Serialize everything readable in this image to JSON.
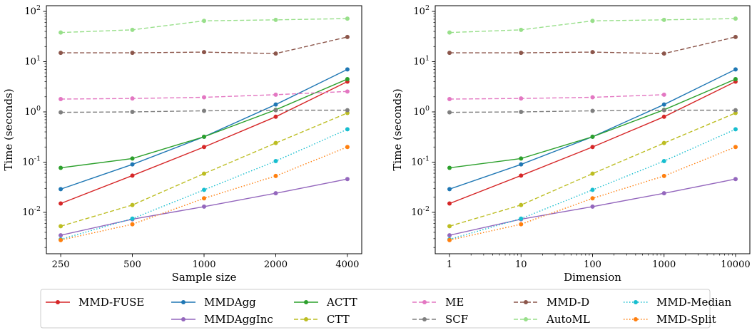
{
  "chart_data": [
    {
      "type": "line",
      "xlabel": "Sample size",
      "ylabel": "Time (seconds)",
      "xscale": "log",
      "yscale": "log",
      "x": [
        250,
        500,
        1000,
        2000,
        4000
      ],
      "xticks": [
        "250",
        "500",
        "1000",
        "2000",
        "4000"
      ],
      "ylim": [
        0.0015,
        130
      ],
      "grid": false,
      "series": [
        {
          "name": "MMD-FUSE",
          "color": "#d62728",
          "dash": "solid",
          "values": [
            0.015,
            0.054,
            0.2,
            0.8,
            4.0
          ]
        },
        {
          "name": "MMDAgg",
          "color": "#1f77b4",
          "dash": "solid",
          "values": [
            0.029,
            0.09,
            0.32,
            1.4,
            7.0
          ]
        },
        {
          "name": "MMDAggInc",
          "color": "#9467bd",
          "dash": "solid",
          "values": [
            0.0035,
            0.0073,
            0.013,
            0.024,
            0.046
          ]
        },
        {
          "name": "ACTT",
          "color": "#2ca02c",
          "dash": "solid",
          "values": [
            0.077,
            0.118,
            0.32,
            1.1,
            4.5
          ]
        },
        {
          "name": "CTT",
          "color": "#bcbd22",
          "dash": "dashed",
          "values": [
            0.0053,
            0.014,
            0.059,
            0.24,
            0.95
          ]
        },
        {
          "name": "ME",
          "color": "#e377c2",
          "dash": "dashed",
          "values": [
            1.8,
            1.85,
            1.95,
            2.2,
            2.55
          ]
        },
        {
          "name": "SCF",
          "color": "#7f7f7f",
          "dash": "dashed",
          "values": [
            0.98,
            1.0,
            1.05,
            1.08,
            1.08
          ]
        },
        {
          "name": "MMD-D",
          "color": "#8c564b",
          "dash": "dashed",
          "values": [
            15.0,
            15.0,
            15.5,
            14.5,
            31.0
          ]
        },
        {
          "name": "AutoML",
          "color": "#98df8a",
          "dash": "dashed",
          "values": [
            38.0,
            43.0,
            65.0,
            68.0,
            72.0
          ]
        },
        {
          "name": "MMD-Median",
          "color": "#17becf",
          "dash": "dotted",
          "values": [
            0.0029,
            0.0075,
            0.028,
            0.105,
            0.45
          ]
        },
        {
          "name": "MMD-Split",
          "color": "#ff7f0e",
          "dash": "dotted",
          "values": [
            0.0028,
            0.0058,
            0.019,
            0.053,
            0.2
          ]
        }
      ]
    },
    {
      "type": "line",
      "xlabel": "Dimension",
      "ylabel": "Time (seconds)",
      "xscale": "log",
      "yscale": "log",
      "x": [
        1,
        10,
        100,
        1000,
        10000
      ],
      "xticks": [
        "1",
        "10",
        "100",
        "1000",
        "10000"
      ],
      "ylim": [
        0.0015,
        130
      ],
      "grid": false,
      "series": [
        {
          "name": "MMD-FUSE",
          "color": "#d62728",
          "dash": "solid",
          "values": [
            0.015,
            0.054,
            0.2,
            0.8,
            4.0
          ]
        },
        {
          "name": "MMDAgg",
          "color": "#1f77b4",
          "dash": "solid",
          "values": [
            0.029,
            0.09,
            0.32,
            1.4,
            7.0
          ]
        },
        {
          "name": "MMDAggInc",
          "color": "#9467bd",
          "dash": "solid",
          "values": [
            0.0035,
            0.0073,
            0.013,
            0.024,
            0.046
          ]
        },
        {
          "name": "ACTT",
          "color": "#2ca02c",
          "dash": "solid",
          "values": [
            0.077,
            0.118,
            0.32,
            1.1,
            4.5
          ]
        },
        {
          "name": "CTT",
          "color": "#bcbd22",
          "dash": "dashed",
          "values": [
            0.0053,
            0.014,
            0.059,
            0.24,
            0.95
          ]
        },
        {
          "name": "ME",
          "color": "#e377c2",
          "dash": "dashed",
          "values": [
            1.8,
            1.85,
            1.95,
            2.2,
            null
          ]
        },
        {
          "name": "SCF",
          "color": "#7f7f7f",
          "dash": "dashed",
          "values": [
            0.98,
            1.0,
            1.05,
            1.08,
            1.08
          ]
        },
        {
          "name": "MMD-D",
          "color": "#8c564b",
          "dash": "dashed",
          "values": [
            15.0,
            15.0,
            15.5,
            14.5,
            31.0
          ]
        },
        {
          "name": "AutoML",
          "color": "#98df8a",
          "dash": "dashed",
          "values": [
            38.0,
            43.0,
            65.0,
            68.0,
            72.0
          ]
        },
        {
          "name": "MMD-Median",
          "color": "#17becf",
          "dash": "dotted",
          "values": [
            0.0029,
            0.0075,
            0.028,
            0.105,
            0.45
          ]
        },
        {
          "name": "MMD-Split",
          "color": "#ff7f0e",
          "dash": "dotted",
          "values": [
            0.0028,
            0.0058,
            0.019,
            0.053,
            0.2
          ]
        }
      ]
    }
  ],
  "yticks": [
    {
      "base": "10",
      "exp": "-2",
      "value": 0.01
    },
    {
      "base": "10",
      "exp": "-1",
      "value": 0.1
    },
    {
      "base": "10",
      "exp": "0",
      "value": 1
    },
    {
      "base": "10",
      "exp": "1",
      "value": 10
    },
    {
      "base": "10",
      "exp": "2",
      "value": 100
    }
  ],
  "legend": {
    "placement": "bottom",
    "columns": [
      [
        "MMD-FUSE"
      ],
      [
        "MMDAgg",
        "MMDAggInc"
      ],
      [
        "ACTT",
        "CTT"
      ],
      [
        "ME",
        "SCF"
      ],
      [
        "MMD-D",
        "AutoML"
      ],
      [
        "MMD-Median",
        "MMD-Split"
      ]
    ]
  }
}
